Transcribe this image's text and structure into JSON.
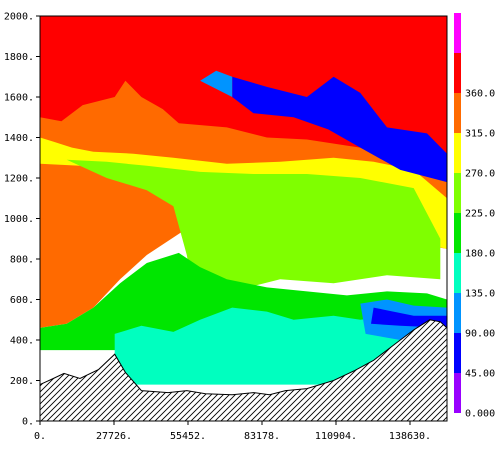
{
  "chart_data": {
    "type": "heatmap",
    "title": "",
    "xlabel": "",
    "ylabel": "",
    "xlim": [
      0,
      152493
    ],
    "ylim": [
      0,
      2000
    ],
    "x_ticks": [
      {
        "value": 0,
        "label": "0."
      },
      {
        "value": 27726,
        "label": "27726."
      },
      {
        "value": 55452,
        "label": "55452."
      },
      {
        "value": 83178,
        "label": "83178."
      },
      {
        "value": 110904,
        "label": "110904."
      },
      {
        "value": 138630,
        "label": "138630."
      }
    ],
    "y_ticks": [
      {
        "value": 0,
        "label": "0."
      },
      {
        "value": 200,
        "label": "200."
      },
      {
        "value": 400,
        "label": "400."
      },
      {
        "value": 600,
        "label": "600."
      },
      {
        "value": 800,
        "label": "800."
      },
      {
        "value": 1000,
        "label": "1000."
      },
      {
        "value": 1200,
        "label": "1200."
      },
      {
        "value": 1400,
        "label": "1400."
      },
      {
        "value": 1600,
        "label": "1600."
      },
      {
        "value": 1800,
        "label": "1800."
      },
      {
        "value": 2000,
        "label": "2000."
      }
    ],
    "colorbar": {
      "levels": [
        {
          "label": "",
          "color": "#ff00ff"
        },
        {
          "label": "360.0",
          "color": "#ff0000"
        },
        {
          "label": "315.0",
          "color": "#ff6a00"
        },
        {
          "label": "270.0",
          "color": "#ffff00"
        },
        {
          "label": "225.0",
          "color": "#7fff00"
        },
        {
          "label": "180.0",
          "color": "#00e600"
        },
        {
          "label": "135.0",
          "color": "#00ffbf"
        },
        {
          "label": "90.00",
          "color": "#0094ff"
        },
        {
          "label": "45.00",
          "color": "#0000ff"
        },
        {
          "label": "0.000",
          "color": "#9900ff"
        }
      ]
    },
    "bands": [
      {
        "name": "red",
        "color": "#ff0000",
        "pts": [
          [
            0,
            2000
          ],
          [
            152493,
            2000
          ],
          [
            152493,
            1260
          ],
          [
            0,
            1260
          ]
        ]
      },
      {
        "name": "orange",
        "color": "#ff6a00",
        "pts": [
          [
            0,
            1500
          ],
          [
            8000,
            1480
          ],
          [
            16000,
            1560
          ],
          [
            28000,
            1600
          ],
          [
            32000,
            1680
          ],
          [
            38000,
            1600
          ],
          [
            46000,
            1540
          ],
          [
            52000,
            1470
          ],
          [
            70000,
            1450
          ],
          [
            85000,
            1400
          ],
          [
            100000,
            1390
          ],
          [
            115000,
            1360
          ],
          [
            135000,
            1320
          ],
          [
            152493,
            1280
          ],
          [
            152493,
            850
          ],
          [
            130000,
            900
          ],
          [
            115000,
            1000
          ],
          [
            95000,
            1050
          ],
          [
            70000,
            1000
          ],
          [
            55000,
            950
          ],
          [
            40000,
            820
          ],
          [
            30000,
            700
          ],
          [
            20000,
            560
          ],
          [
            10000,
            480
          ],
          [
            0,
            460
          ]
        ]
      },
      {
        "name": "yellow",
        "color": "#ffff00",
        "pts": [
          [
            0,
            1400
          ],
          [
            5000,
            1380
          ],
          [
            12000,
            1350
          ],
          [
            20000,
            1330
          ],
          [
            35000,
            1320
          ],
          [
            50000,
            1300
          ],
          [
            70000,
            1270
          ],
          [
            90000,
            1280
          ],
          [
            110000,
            1300
          ],
          [
            125000,
            1280
          ],
          [
            140000,
            1240
          ],
          [
            152493,
            1100
          ],
          [
            152493,
            850
          ],
          [
            135000,
            900
          ],
          [
            120000,
            880
          ],
          [
            100000,
            850
          ],
          [
            80000,
            820
          ],
          [
            65000,
            830
          ],
          [
            55000,
            1060
          ],
          [
            45000,
            1140
          ],
          [
            30000,
            1200
          ],
          [
            15000,
            1260
          ],
          [
            0,
            1270
          ]
        ]
      },
      {
        "name": "lime",
        "color": "#7fff00",
        "pts": [
          [
            10000,
            1290
          ],
          [
            25000,
            1280
          ],
          [
            40000,
            1260
          ],
          [
            60000,
            1230
          ],
          [
            80000,
            1220
          ],
          [
            100000,
            1220
          ],
          [
            120000,
            1200
          ],
          [
            140000,
            1150
          ],
          [
            150000,
            900
          ],
          [
            150000,
            700
          ],
          [
            130000,
            720
          ],
          [
            110000,
            680
          ],
          [
            90000,
            700
          ],
          [
            75000,
            650
          ],
          [
            65000,
            700
          ],
          [
            58000,
            600
          ],
          [
            55000,
            820
          ],
          [
            50000,
            1060
          ],
          [
            40000,
            1140
          ],
          [
            25000,
            1200
          ]
        ]
      },
      {
        "name": "green",
        "color": "#00e600",
        "pts": [
          [
            0,
            460
          ],
          [
            10000,
            480
          ],
          [
            20000,
            560
          ],
          [
            30000,
            680
          ],
          [
            40000,
            780
          ],
          [
            52000,
            830
          ],
          [
            60000,
            760
          ],
          [
            70000,
            700
          ],
          [
            85000,
            660
          ],
          [
            100000,
            640
          ],
          [
            115000,
            620
          ],
          [
            130000,
            640
          ],
          [
            145000,
            630
          ],
          [
            152493,
            600
          ],
          [
            152493,
            350
          ],
          [
            0,
            350
          ]
        ]
      },
      {
        "name": "teal",
        "color": "#00ffbf",
        "pts": [
          [
            28000,
            430
          ],
          [
            38000,
            470
          ],
          [
            50000,
            440
          ],
          [
            60000,
            500
          ],
          [
            72000,
            560
          ],
          [
            85000,
            540
          ],
          [
            95000,
            500
          ],
          [
            110000,
            520
          ],
          [
            120000,
            500
          ],
          [
            135000,
            520
          ],
          [
            152493,
            540
          ],
          [
            152493,
            180
          ],
          [
            28000,
            180
          ]
        ]
      },
      {
        "name": "azure",
        "color": "#0094ff",
        "pts": [
          [
            120000,
            580
          ],
          [
            130000,
            600
          ],
          [
            140000,
            570
          ],
          [
            152493,
            560
          ],
          [
            152493,
            380
          ],
          [
            135000,
            400
          ],
          [
            122000,
            430
          ]
        ]
      },
      {
        "name": "blue",
        "color": "#0000ff",
        "pts": [
          [
            125000,
            560
          ],
          [
            140000,
            520
          ],
          [
            152493,
            520
          ],
          [
            152493,
            460
          ],
          [
            135000,
            470
          ],
          [
            124000,
            480
          ]
        ]
      },
      {
        "name": "blue-upper",
        "color": "#0000ff",
        "pts": [
          [
            72000,
            1700
          ],
          [
            85000,
            1650
          ],
          [
            100000,
            1600
          ],
          [
            110000,
            1700
          ],
          [
            120000,
            1620
          ],
          [
            130000,
            1450
          ],
          [
            145000,
            1420
          ],
          [
            152493,
            1320
          ],
          [
            152493,
            1180
          ],
          [
            135000,
            1240
          ],
          [
            120000,
            1350
          ],
          [
            108000,
            1440
          ],
          [
            95000,
            1500
          ],
          [
            80000,
            1520
          ],
          [
            72000,
            1600
          ]
        ]
      },
      {
        "name": "cyan-upper",
        "color": "#0094ff",
        "pts": [
          [
            60000,
            1680
          ],
          [
            72000,
            1600
          ],
          [
            72000,
            1700
          ],
          [
            66000,
            1730
          ]
        ]
      }
    ],
    "terrain": [
      [
        0,
        180
      ],
      [
        5000,
        210
      ],
      [
        9000,
        235
      ],
      [
        15000,
        210
      ],
      [
        22000,
        255
      ],
      [
        28000,
        330
      ],
      [
        32000,
        240
      ],
      [
        38000,
        150
      ],
      [
        48000,
        140
      ],
      [
        55000,
        150
      ],
      [
        62000,
        135
      ],
      [
        72000,
        130
      ],
      [
        80000,
        140
      ],
      [
        86000,
        130
      ],
      [
        92000,
        150
      ],
      [
        100000,
        160
      ],
      [
        110000,
        200
      ],
      [
        118000,
        250
      ],
      [
        125000,
        300
      ],
      [
        130000,
        350
      ],
      [
        135000,
        400
      ],
      [
        140000,
        450
      ],
      [
        146000,
        500
      ],
      [
        150000,
        490
      ],
      [
        152493,
        460
      ],
      [
        152493,
        0
      ],
      [
        0,
        0
      ]
    ]
  }
}
